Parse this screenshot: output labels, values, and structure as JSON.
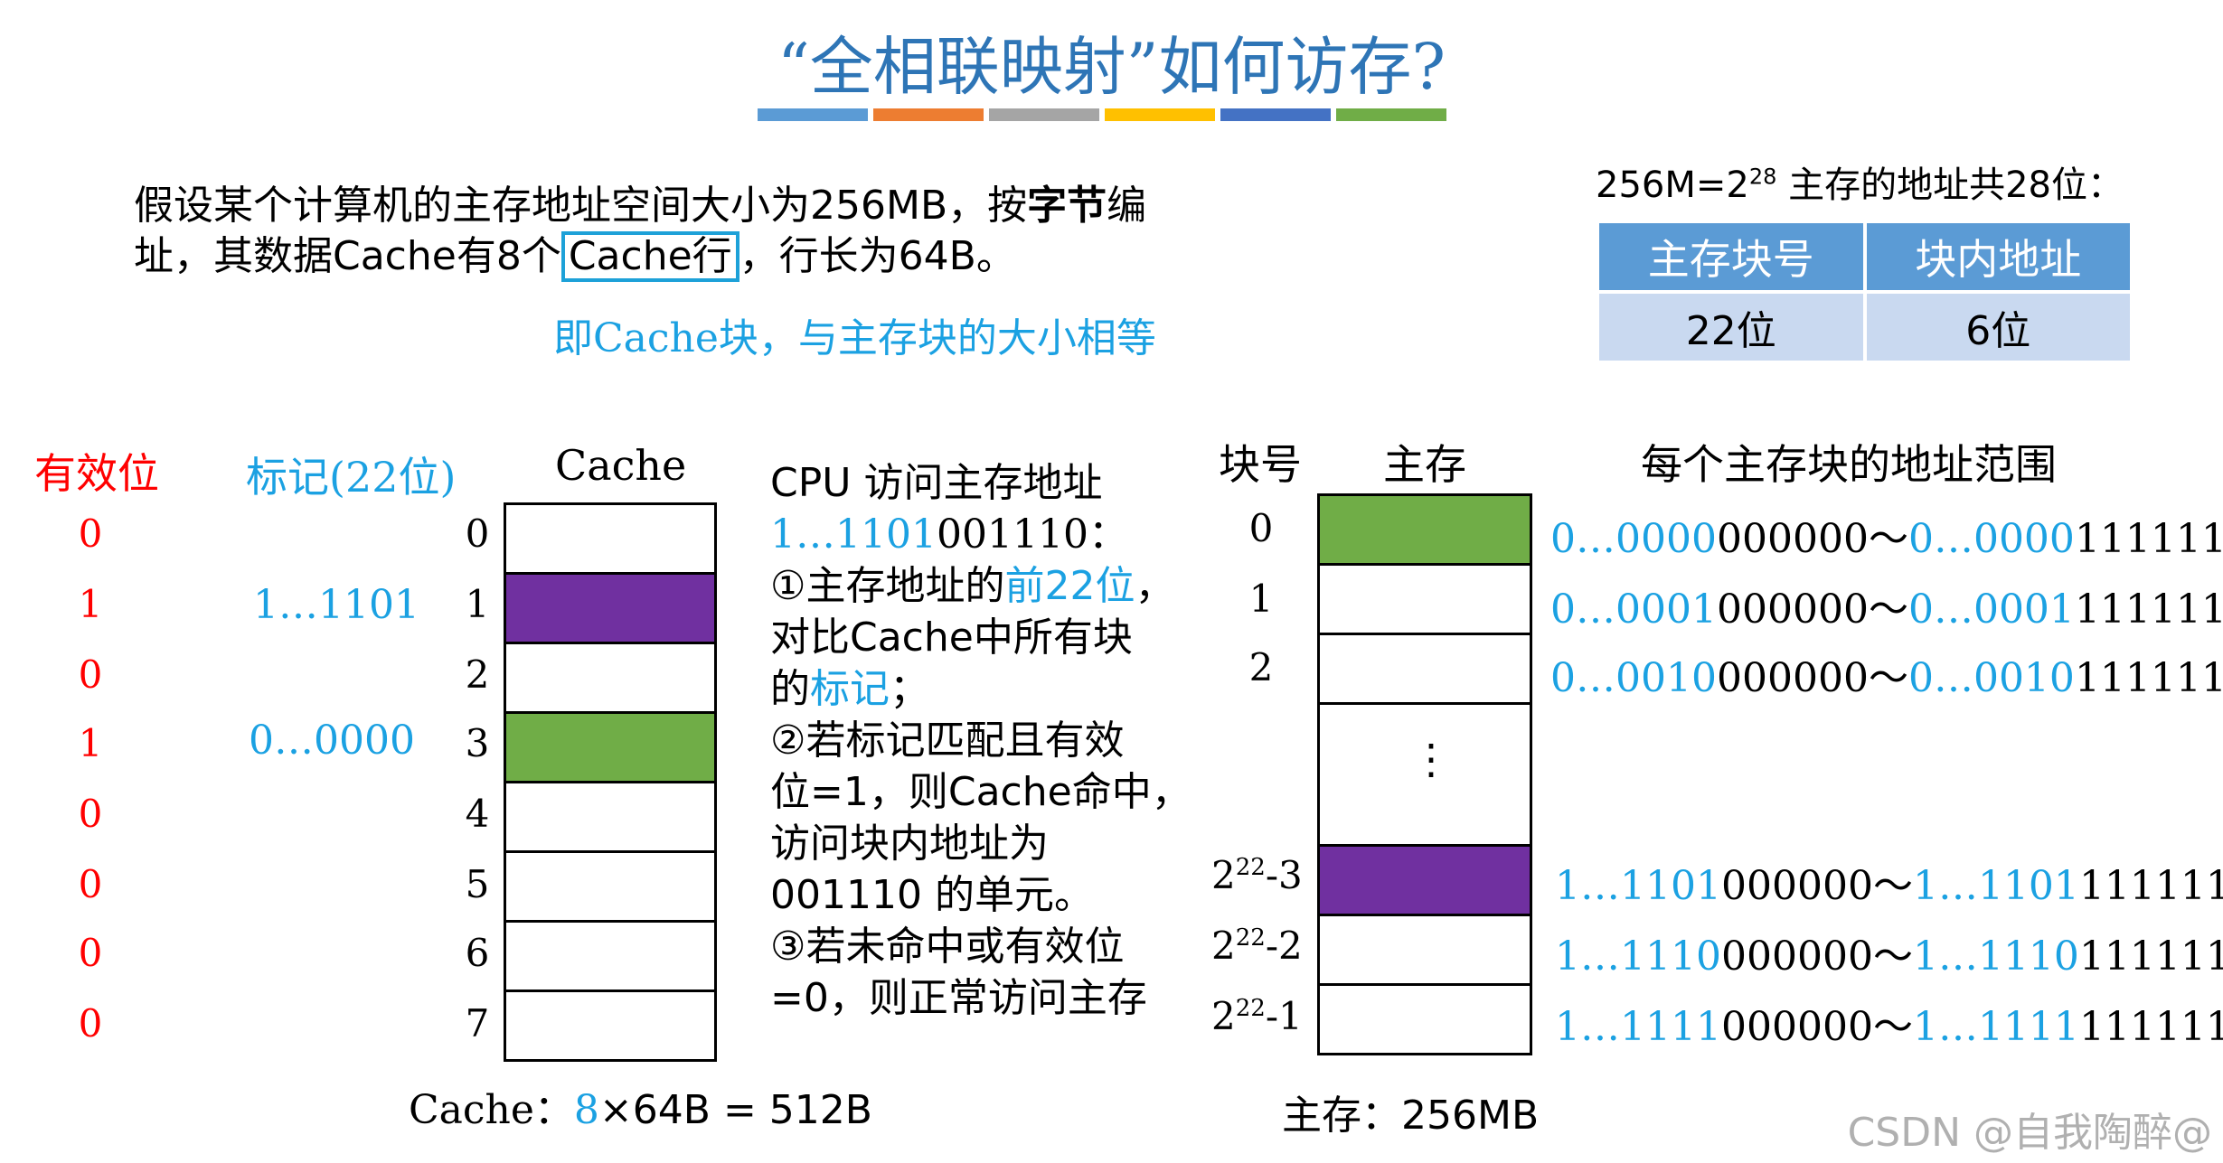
{
  "title": "“全相联映射”如何访存?",
  "title_bar_colors": [
    "#5b9bd5",
    "#ed7d31",
    "#a5a5a5",
    "#ffc000",
    "#4472c4",
    "#70ad47"
  ],
  "intro": {
    "line1_a": "假设某个计算机的主存地址空间大小为256MB，按",
    "line1_bold": "字节",
    "line1_b": "编",
    "line2_a": "址，其数据Cache有8个",
    "line2_box": "Cache行",
    "line2_b": "，行长为64B。",
    "note": "即Cache块，与主存块的大小相等"
  },
  "address": {
    "caption_a": "256M=2",
    "caption_sup": "28",
    "caption_b": " 主存的地址共28位：",
    "headers": [
      "主存块号",
      "块内地址"
    ],
    "values": [
      "22位",
      "6位"
    ]
  },
  "cache": {
    "valid_header": "有效位",
    "tag_header": "标记(22位)",
    "title": "Cache",
    "rows": [
      {
        "index": "0",
        "valid": "0",
        "tag": "",
        "color": "#ffffff"
      },
      {
        "index": "1",
        "valid": "1",
        "tag": "1…1101",
        "color": "#7030a0"
      },
      {
        "index": "2",
        "valid": "0",
        "tag": "",
        "color": "#ffffff"
      },
      {
        "index": "3",
        "valid": "1",
        "tag": "0…0000",
        "color": "#70ad47"
      },
      {
        "index": "4",
        "valid": "0",
        "tag": "",
        "color": "#ffffff"
      },
      {
        "index": "5",
        "valid": "0",
        "tag": "",
        "color": "#ffffff"
      },
      {
        "index": "6",
        "valid": "0",
        "tag": "",
        "color": "#ffffff"
      },
      {
        "index": "7",
        "valid": "0",
        "tag": "",
        "color": "#ffffff"
      }
    ],
    "size_a": "Cache：",
    "size_n": "8",
    "size_b": "×64B = 512B"
  },
  "cpu": {
    "l1": "CPU 访问主存地址",
    "l2_blue": "1…1101",
    "l2_black": "001110：",
    "l3_a": "①主存地址的",
    "l3_blue": "前22位",
    "l3_b": "，",
    "l4": "对比Cache中所有块",
    "l5_a": "的",
    "l5_blue": "标记",
    "l5_b": "；",
    "l6": "②若标记匹配且有效",
    "l7": "位=1，则Cache命中，",
    "l8": "访问块内地址为",
    "l9": "001110 的单元。",
    "l10": "③若未命中或有效位",
    "l11": "=0，则正常访问主存"
  },
  "memory": {
    "block_header": "块号",
    "title": "主存",
    "range_header": "每个主存块的地址范围",
    "dots": "⋮",
    "rows": [
      {
        "block": "0",
        "color": "#70ad47",
        "s_blue": "0…0000",
        "s_black": "000000",
        "sep": "～",
        "e_blue": "0…0000",
        "e_black": "111111"
      },
      {
        "block": "1",
        "color": "#ffffff",
        "s_blue": "0…0001",
        "s_black": "000000",
        "sep": "～",
        "e_blue": "0…0001",
        "e_black": "111111"
      },
      {
        "block": "2",
        "color": "#ffffff",
        "s_blue": "0…0010",
        "s_black": "000000",
        "sep": "～",
        "e_blue": "0…0010",
        "e_black": "111111"
      },
      {
        "block_base": "2",
        "block_exp": "22",
        "block_off": "-3",
        "color": "#7030a0",
        "s_blue": "1…1101",
        "s_black": "000000",
        "sep": "～",
        "e_blue": "1…1101",
        "e_black": "111111"
      },
      {
        "block_base": "2",
        "block_exp": "22",
        "block_off": "-2",
        "color": "#ffffff",
        "s_blue": "1…1110",
        "s_black": "000000",
        "sep": "～",
        "e_blue": "1…1110",
        "e_black": "111111"
      },
      {
        "block_base": "2",
        "block_exp": "22",
        "block_off": "-1",
        "color": "#ffffff",
        "s_blue": "1…1111",
        "s_black": "000000",
        "sep": "～",
        "e_blue": "1…1111",
        "e_black": "111111"
      }
    ],
    "size_a": "主存：",
    "size_b": "256MB"
  },
  "watermark": "CSDN @自我陶醉@"
}
